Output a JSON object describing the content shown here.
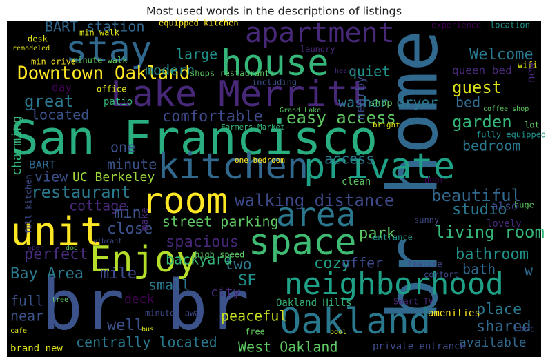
{
  "chart_data": {
    "type": "wordcloud",
    "title": "Most used words in the descriptions of listings",
    "words": [
      "San Francisco",
      "br br",
      "br home",
      "Lake Merritt",
      "kitchen",
      "private",
      "house",
      "apartment",
      "stay",
      "room",
      "area",
      "unit",
      "space",
      "Enjoy",
      "neighborhood",
      "Oakland",
      "Downtown Oakland",
      "BART station",
      "modern",
      "large",
      "Welcome",
      "queen bed",
      "guest",
      "quiet",
      "washer dryer",
      "bed",
      "great",
      "located",
      "comfortable",
      "easy access",
      "garden",
      "one",
      "bedroom",
      "minute",
      "UC Berkeley",
      "view",
      "restaurant",
      "walking distance",
      "beautiful",
      "cottage",
      "studio",
      "min",
      "street parking",
      "close",
      "living room",
      "spacious",
      "perfect",
      "bathroom",
      "two",
      "cozy",
      "park",
      "Bay Area",
      "backyard",
      "offer",
      "bath",
      "mile",
      "SF",
      "small",
      "deck",
      "city",
      "full",
      "near",
      "well",
      "peaceful",
      "place",
      "shared",
      "available",
      "centrally located",
      "West Oakland",
      "Oakland Hills",
      "private entrance",
      "amenities",
      "brand new",
      "high speed",
      "minutes away",
      "equipped kitchen",
      "min walk",
      "minute walk",
      "min drive",
      "shops restaurants",
      "laundry",
      "including",
      "experience",
      "location",
      "Farmers Market",
      "Grand Lake",
      "fully equipped",
      "coffee shop",
      "one bedroom",
      "access",
      "clean",
      "shop",
      "day",
      "patio",
      "office",
      "lot",
      "wifi",
      "huge",
      "also",
      "lovely",
      "sunny",
      "pool",
      "free",
      "bright",
      "bus",
      "cafe",
      "tree",
      "vibrant",
      "dog",
      "open",
      "desk",
      "remodeled",
      "heart",
      "entrance",
      "feature",
      "comfort",
      "door",
      "Smart TV",
      "host",
      "new",
      "nearby",
      "charming",
      "full kitchen",
      "make",
      "BART",
      "w"
    ]
  }
}
